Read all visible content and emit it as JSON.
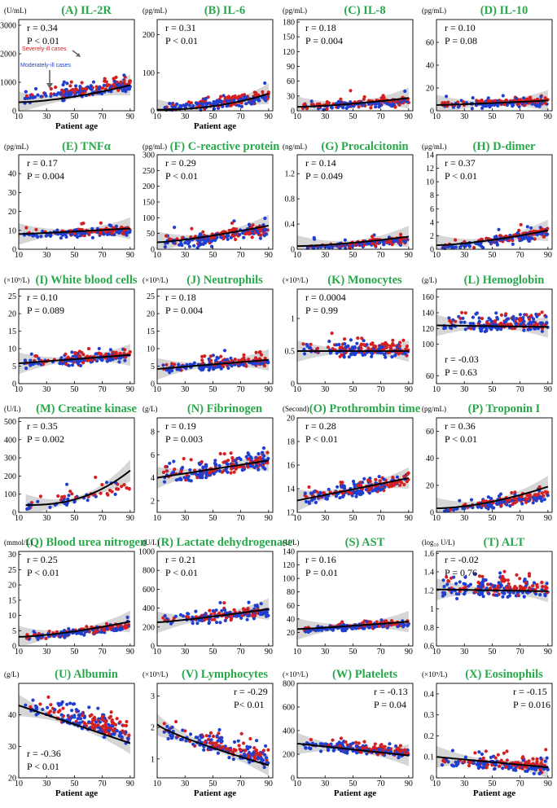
{
  "figure": {
    "colors": {
      "severe": "#d42020",
      "moderate": "#1f3fd0",
      "title": "#27a84a",
      "band": "#c8c8c8",
      "fit": "#000000"
    },
    "legend": {
      "severe": "Severely-ill cases",
      "moderate": "Moderately-ill cases"
    }
  },
  "chart_data": [
    {
      "id": "A",
      "type": "scatter",
      "title": "(A) IL-2R",
      "unit": "(U/mL)",
      "ylim": [
        0,
        3200
      ],
      "yticks": [
        0,
        1000,
        2000,
        3000
      ],
      "xlim": [
        10,
        93
      ],
      "xticks": [
        10,
        30,
        50,
        70,
        90
      ],
      "xlabel": "Patient age",
      "r": "r = 0.34",
      "p": "P < 0.01",
      "stats_pos": "top-left",
      "fit": {
        "x": [
          10,
          90
        ],
        "y": [
          300,
          900
        ],
        "curve": 1.6
      },
      "scatter": {
        "center": 700,
        "spread": 600,
        "skew": 2.2,
        "trend": 6,
        "seed": 1
      }
    },
    {
      "id": "B",
      "type": "scatter",
      "title": "(B) IL-6",
      "unit": "(pg/mL)",
      "ylim": [
        0,
        240
      ],
      "yticks": [
        0,
        100,
        200
      ],
      "xlim": [
        10,
        93
      ],
      "xticks": [
        10,
        30,
        50,
        70,
        90
      ],
      "xlabel": "Patient age",
      "r": "r = 0.31",
      "p": "P < 0.01",
      "stats_pos": "top-left",
      "fit": {
        "x": [
          10,
          90
        ],
        "y": [
          3,
          45
        ],
        "curve": 2.2
      },
      "scatter": {
        "center": 25,
        "spread": 45,
        "skew": 3,
        "trend": 0.4,
        "seed": 2
      }
    },
    {
      "id": "C",
      "type": "scatter",
      "title": "(C) IL-8",
      "unit": "(pg/mL)",
      "ylim": [
        0,
        185
      ],
      "yticks": [
        0,
        30,
        60,
        90,
        120,
        150,
        180
      ],
      "xlim": [
        10,
        93
      ],
      "xticks": [
        10,
        30,
        50,
        70,
        90
      ],
      "xlabel": "",
      "r": "r = 0.18",
      "p": "P = 0.004",
      "stats_pos": "top-left",
      "fit": {
        "x": [
          10,
          90
        ],
        "y": [
          8,
          26
        ],
        "curve": 1.5
      },
      "scatter": {
        "center": 15,
        "spread": 25,
        "skew": 3,
        "trend": 0.15,
        "seed": 3
      }
    },
    {
      "id": "D",
      "type": "scatter",
      "title": "(D) IL-10",
      "unit": "(pg/mL)",
      "ylim": [
        0,
        80
      ],
      "yticks": [
        0,
        20,
        40,
        60
      ],
      "xlim": [
        10,
        93
      ],
      "xticks": [
        10,
        30,
        50,
        70,
        90
      ],
      "xlabel": "",
      "r": "r = 0.10",
      "p": "P = 0.08",
      "stats_pos": "top-left",
      "fit": {
        "x": [
          10,
          90
        ],
        "y": [
          5,
          9
        ],
        "curve": 1.2
      },
      "scatter": {
        "center": 7,
        "spread": 9,
        "skew": 3,
        "trend": 0.03,
        "seed": 4
      }
    },
    {
      "id": "E",
      "type": "scatter",
      "title": "(E) TNFα",
      "unit": "(pg/mL)",
      "ylim": [
        0,
        50
      ],
      "yticks": [
        0,
        10,
        20,
        30,
        40
      ],
      "xlim": [
        10,
        93
      ],
      "xticks": [
        10,
        30,
        50,
        70,
        90
      ],
      "xlabel": "",
      "r": "r = 0.17",
      "p": "P = 0.004",
      "stats_pos": "top-left",
      "fit": {
        "x": [
          10,
          90
        ],
        "y": [
          8,
          11
        ],
        "curve": 1.1
      },
      "scatter": {
        "center": 9,
        "spread": 6,
        "skew": 2.2,
        "trend": 0.03,
        "seed": 5
      }
    },
    {
      "id": "F",
      "type": "scatter",
      "title": "(F) C-reactive protein",
      "unit": "(pg/mL)",
      "ylim": [
        0,
        300
      ],
      "yticks": [
        0,
        50,
        100,
        150,
        200,
        250,
        300
      ],
      "xlim": [
        10,
        93
      ],
      "xticks": [
        10,
        30,
        50,
        70,
        90
      ],
      "xlabel": "",
      "r": "r = 0.29",
      "p": "P < 0.01",
      "stats_pos": "top-left",
      "fit": {
        "x": [
          10,
          90
        ],
        "y": [
          22,
          75
        ],
        "curve": 1.3
      },
      "scatter": {
        "center": 45,
        "spread": 60,
        "skew": 2.5,
        "trend": 0.6,
        "seed": 6
      }
    },
    {
      "id": "G",
      "type": "scatter",
      "title": "(G) Procalcitonin",
      "unit": "(ng/mL)",
      "ylim": [
        0,
        1.5
      ],
      "yticks": [
        0,
        0.4,
        0.8,
        1.2
      ],
      "xlim": [
        10,
        93
      ],
      "xticks": [
        10,
        30,
        50,
        70,
        90
      ],
      "xlabel": "",
      "r": "r = 0.14",
      "p": "P = 0.049",
      "stats_pos": "top-left",
      "fit": {
        "x": [
          10,
          90
        ],
        "y": [
          0.05,
          0.2
        ],
        "curve": 1.5
      },
      "scatter": {
        "center": 0.1,
        "spread": 0.2,
        "skew": 3.2,
        "trend": 0.002,
        "seed": 7
      }
    },
    {
      "id": "H",
      "type": "scatter",
      "title": "(H) D-dimer",
      "unit": "(μg/mL)",
      "ylim": [
        0,
        14
      ],
      "yticks": [
        0,
        2,
        4,
        6,
        8,
        10,
        12,
        14
      ],
      "xlim": [
        10,
        93
      ],
      "xticks": [
        10,
        30,
        50,
        70,
        90
      ],
      "xlabel": "",
      "r": "r = 0.37",
      "p": "P < 0.01",
      "stats_pos": "top-left",
      "fit": {
        "x": [
          10,
          90
        ],
        "y": [
          0.6,
          2.8
        ],
        "curve": 1.5
      },
      "scatter": {
        "center": 1.6,
        "spread": 2.2,
        "skew": 2.8,
        "trend": 0.03,
        "seed": 8
      }
    },
    {
      "id": "I",
      "type": "scatter",
      "title": "(I) White blood cells",
      "unit": "(×10⁹/L)",
      "ylim": [
        0,
        27
      ],
      "yticks": [
        0,
        5,
        10,
        15,
        20,
        25
      ],
      "xlim": [
        10,
        93
      ],
      "xticks": [
        10,
        30,
        50,
        70,
        90
      ],
      "xlabel": "",
      "r": "r = 0.10",
      "p": "P = 0.089",
      "stats_pos": "top-left",
      "fit": {
        "x": [
          10,
          90
        ],
        "y": [
          5.8,
          8.2
        ],
        "curve": 1
      },
      "scatter": {
        "center": 7,
        "spread": 3.5,
        "skew": 1.8,
        "trend": 0.03,
        "seed": 9
      }
    },
    {
      "id": "J",
      "type": "scatter",
      "title": "(J) Neutrophils",
      "unit": "(×10⁹/L)",
      "ylim": [
        0,
        27
      ],
      "yticks": [
        0,
        5,
        10,
        15,
        20,
        25
      ],
      "xlim": [
        10,
        93
      ],
      "xticks": [
        10,
        30,
        50,
        70,
        90
      ],
      "xlabel": "",
      "r": "r = 0.18",
      "p": "P = 0.004",
      "stats_pos": "top-left",
      "fit": {
        "x": [
          10,
          90
        ],
        "y": [
          4.2,
          6.8
        ],
        "curve": 1
      },
      "scatter": {
        "center": 5.5,
        "spread": 3.5,
        "skew": 2,
        "trend": 0.03,
        "seed": 10
      }
    },
    {
      "id": "K",
      "type": "scatter",
      "title": "(K) Monocytes",
      "unit": "(×10⁹/L)",
      "ylim": [
        0,
        1.45
      ],
      "yticks": [
        0,
        0.5,
        1
      ],
      "xlim": [
        10,
        93
      ],
      "xticks": [
        10,
        30,
        50,
        70,
        90
      ],
      "xlabel": "",
      "r": "r = 0.0004",
      "p": "P = 0.99",
      "stats_pos": "top-left",
      "fit": {
        "x": [
          10,
          90
        ],
        "y": [
          0.5,
          0.5
        ],
        "curve": 1
      },
      "scatter": {
        "center": 0.5,
        "spread": 0.22,
        "skew": 1.3,
        "trend": 0,
        "seed": 11
      }
    },
    {
      "id": "L",
      "type": "scatter",
      "title": "(L) Hemoglobin",
      "unit": "(g/L)",
      "ylim": [
        50,
        170
      ],
      "yticks": [
        60,
        100,
        120,
        140,
        160
      ],
      "xlim": [
        10,
        93
      ],
      "xticks": [
        10,
        30,
        50,
        70,
        90
      ],
      "xlabel": "",
      "r": "r = -0.03",
      "p": "P = 0.63",
      "stats_pos": "bottom-left",
      "fit": {
        "x": [
          10,
          90
        ],
        "y": [
          124,
          122
        ],
        "curve": 1
      },
      "scatter": {
        "center": 123,
        "spread": 16,
        "skew": 1,
        "trend": 0,
        "seed": 12
      }
    },
    {
      "id": "M",
      "type": "scatter",
      "title": "(M) Creatine kinase",
      "unit": "(U/L)",
      "ylim": [
        0,
        520
      ],
      "yticks": [
        0,
        100,
        200,
        300,
        400,
        500
      ],
      "xlim": [
        10,
        93
      ],
      "xticks": [
        10,
        30,
        50,
        70,
        90
      ],
      "xlabel": "",
      "r": "r = 0.35",
      "p": "P = 0.002",
      "stats_pos": "top-left",
      "fit": {
        "x": [
          15,
          90
        ],
        "y": [
          40,
          230
        ],
        "curve": 2.4
      },
      "scatter": {
        "center": 90,
        "spread": 80,
        "skew": 2,
        "trend": 1.2,
        "seed": 13,
        "n": 60
      }
    },
    {
      "id": "N",
      "type": "scatter",
      "title": "(N) Fibrinogen",
      "unit": "(g/L)",
      "ylim": [
        1,
        9.2
      ],
      "yticks": [
        2,
        4,
        6,
        8
      ],
      "xlim": [
        10,
        93
      ],
      "xticks": [
        10,
        30,
        50,
        70,
        90
      ],
      "xlabel": "",
      "r": "r = 0.19",
      "p": "P = 0.003",
      "stats_pos": "top-left",
      "fit": {
        "x": [
          10,
          90
        ],
        "y": [
          4.0,
          5.5
        ],
        "curve": 1
      },
      "scatter": {
        "center": 4.8,
        "spread": 1.3,
        "skew": 1,
        "trend": 0.02,
        "seed": 14
      }
    },
    {
      "id": "O",
      "type": "scatter",
      "title": "(O) Prothrombin time",
      "unit": "(Second)",
      "ylim": [
        12,
        20
      ],
      "yticks": [
        12,
        14,
        16,
        18,
        20
      ],
      "xlim": [
        10,
        93
      ],
      "xticks": [
        10,
        30,
        50,
        70,
        90
      ],
      "xlabel": "",
      "r": "r = 0.28",
      "p": "P < 0.01",
      "stats_pos": "top-left",
      "fit": {
        "x": [
          10,
          90
        ],
        "y": [
          13.0,
          14.9
        ],
        "curve": 1
      },
      "scatter": {
        "center": 14,
        "spread": 1.1,
        "skew": 1.3,
        "trend": 0.02,
        "seed": 15
      }
    },
    {
      "id": "P",
      "type": "scatter",
      "title": "(P) Troponin I",
      "unit": "(pg/mL)",
      "ylim": [
        0,
        70
      ],
      "yticks": [
        0,
        20,
        40,
        60
      ],
      "xlim": [
        10,
        93
      ],
      "xticks": [
        10,
        30,
        50,
        70,
        90
      ],
      "xlabel": "",
      "r": "r = 0.36",
      "p": "P < 0.01",
      "stats_pos": "top-left",
      "fit": {
        "x": [
          10,
          90
        ],
        "y": [
          3,
          19
        ],
        "curve": 1.7
      },
      "scatter": {
        "center": 8,
        "spread": 10,
        "skew": 2.6,
        "trend": 0.15,
        "seed": 16
      }
    },
    {
      "id": "Q",
      "type": "scatter",
      "title": "(Q) Blood urea nitrogen",
      "unit": "(mmol/L)",
      "ylim": [
        0,
        31
      ],
      "yticks": [
        0,
        5,
        10,
        15,
        20,
        25,
        30
      ],
      "xlim": [
        10,
        93
      ],
      "xticks": [
        10,
        30,
        50,
        70,
        90
      ],
      "xlabel": "",
      "r": "r = 0.25",
      "p": "P < 0.01",
      "stats_pos": "top-left",
      "fit": {
        "x": [
          10,
          90
        ],
        "y": [
          3,
          8
        ],
        "curve": 1.5
      },
      "scatter": {
        "center": 5,
        "spread": 3,
        "skew": 2.5,
        "trend": 0.05,
        "seed": 17
      }
    },
    {
      "id": "R",
      "type": "scatter",
      "title": "(R) Lactate dehydrogenase",
      "unit": "(U/L)",
      "ylim": [
        0,
        1000
      ],
      "yticks": [
        0,
        200,
        400,
        600,
        800,
        1000
      ],
      "xlim": [
        10,
        93
      ],
      "xticks": [
        10,
        30,
        50,
        70,
        90
      ],
      "xlabel": "",
      "r": "r = 0.21",
      "p": "P < 0.01",
      "stats_pos": "top-left",
      "fit": {
        "x": [
          10,
          90
        ],
        "y": [
          250,
          390
        ],
        "curve": 1.2
      },
      "scatter": {
        "center": 320,
        "spread": 140,
        "skew": 1.8,
        "trend": 1.5,
        "seed": 18
      }
    },
    {
      "id": "S",
      "type": "scatter",
      "title": "(S) AST",
      "unit": "(U/L)",
      "ylim": [
        0,
        140
      ],
      "yticks": [
        20,
        40,
        60,
        80,
        100,
        120,
        140
      ],
      "xlim": [
        10,
        93
      ],
      "xticks": [
        10,
        30,
        50,
        70,
        90
      ],
      "xlabel": "",
      "r": "r = 0.16",
      "p": "P = 0.01",
      "stats_pos": "top-left",
      "fit": {
        "x": [
          10,
          90
        ],
        "y": [
          25,
          36
        ],
        "curve": 1.2
      },
      "scatter": {
        "center": 30,
        "spread": 12,
        "skew": 2.4,
        "trend": 0.12,
        "seed": 19
      }
    },
    {
      "id": "T",
      "type": "scatter",
      "title": "(T) ALT",
      "unit": "(log₁₀ U/L)",
      "ylim": [
        0.6,
        1.62
      ],
      "yticks": [
        0.6,
        0.8,
        1.0,
        1.2,
        1.4,
        1.6
      ],
      "xlim": [
        10,
        93
      ],
      "xticks": [
        10,
        30,
        50,
        70,
        90
      ],
      "xlabel": "",
      "r": "r = -0.02",
      "p": "P = 0.76",
      "stats_pos": "top-left",
      "fit": {
        "x": [
          10,
          90
        ],
        "y": [
          1.21,
          1.19
        ],
        "curve": 1
      },
      "scatter": {
        "center": 1.2,
        "spread": 0.17,
        "skew": 1,
        "trend": 0,
        "seed": 20
      }
    },
    {
      "id": "U",
      "type": "scatter",
      "title": "(U) Albumin",
      "unit": "(g/L)",
      "ylim": [
        20,
        50
      ],
      "yticks": [
        20,
        30,
        40
      ],
      "xlim": [
        10,
        93
      ],
      "xticks": [
        10,
        30,
        50,
        70,
        90
      ],
      "xlabel": "Patient age",
      "r": "r = -0.36",
      "p": "P < 0.01",
      "stats_pos": "bottom-left",
      "fit": {
        "x": [
          10,
          90
        ],
        "y": [
          43,
          31
        ],
        "curve": 1
      },
      "scatter": {
        "center": 37,
        "spread": 5.5,
        "skew": 1,
        "trend": -0.12,
        "seed": 21
      }
    },
    {
      "id": "V",
      "type": "scatter",
      "title": "(V) Lymphocytes",
      "unit": "(×10⁹/L)",
      "ylim": [
        0.4,
        3.4
      ],
      "yticks": [
        1.0,
        2.0,
        3.0
      ],
      "xlim": [
        10,
        93
      ],
      "xticks": [
        10,
        30,
        50,
        70,
        90
      ],
      "xlabel": "Patient age",
      "r": "r = -0.29",
      "p": "P< 0.01",
      "stats_pos": "top-right",
      "fit": {
        "x": [
          10,
          90
        ],
        "y": [
          2.1,
          0.8
        ],
        "curve": 0.8
      },
      "scatter": {
        "center": 1.3,
        "spread": 0.55,
        "skew": 1.2,
        "trend": -0.012,
        "seed": 22
      }
    },
    {
      "id": "W",
      "type": "scatter",
      "title": "(W) Platelets",
      "unit": "(×10⁹/L)",
      "ylim": [
        0,
        800
      ],
      "yticks": [
        0,
        200,
        400,
        600,
        800
      ],
      "xlim": [
        10,
        93
      ],
      "xticks": [
        10,
        30,
        50,
        70,
        90
      ],
      "xlabel": "Patient age",
      "r": "r = -0.13",
      "p": "P = 0.04",
      "stats_pos": "top-right",
      "fit": {
        "x": [
          10,
          90
        ],
        "y": [
          290,
          190
        ],
        "curve": 1
      },
      "scatter": {
        "center": 235,
        "spread": 90,
        "skew": 1.5,
        "trend": -1,
        "seed": 23
      }
    },
    {
      "id": "X",
      "type": "scatter",
      "title": "(X) Eosinophils",
      "unit": "(×10⁹/L)",
      "ylim": [
        0,
        0.45
      ],
      "yticks": [
        0,
        0.1,
        0.2,
        0.3,
        0.4
      ],
      "xlim": [
        10,
        93
      ],
      "xticks": [
        10,
        30,
        50,
        70,
        90
      ],
      "xlabel": "Patient age",
      "r": "r = -0.15",
      "p": "P = 0.016",
      "stats_pos": "top-right",
      "fit": {
        "x": [
          10,
          90
        ],
        "y": [
          0.1,
          0.05
        ],
        "curve": 1
      },
      "scatter": {
        "center": 0.06,
        "spread": 0.07,
        "skew": 2,
        "trend": -0.0004,
        "seed": 24
      }
    }
  ]
}
